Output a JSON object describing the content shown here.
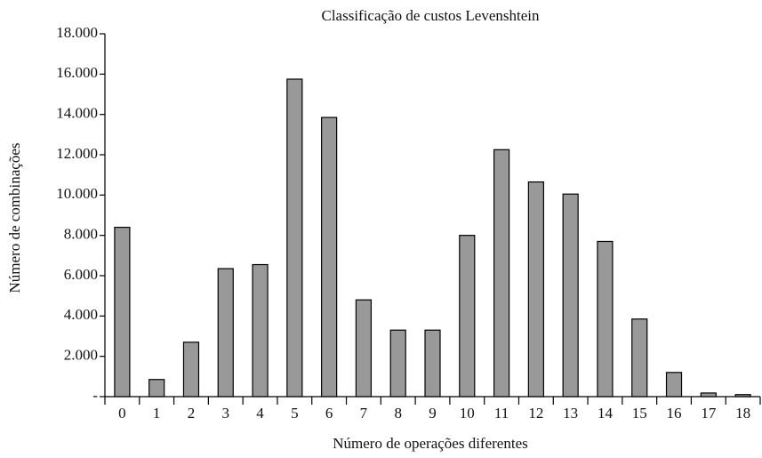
{
  "chart_data": {
    "type": "bar",
    "title": "Classificação de custos Levenshtein",
    "x_label": "Número de operações diferentes",
    "y_label": "Número de combinações",
    "categories": [
      "0",
      "1",
      "2",
      "3",
      "4",
      "5",
      "6",
      "7",
      "8",
      "9",
      "10",
      "11",
      "12",
      "13",
      "14",
      "15",
      "16",
      "17",
      "18"
    ],
    "values": [
      8400,
      850,
      2700,
      6350,
      6550,
      15750,
      13850,
      4800,
      3300,
      3300,
      8000,
      12250,
      10650,
      10050,
      7700,
      3850,
      1200,
      180,
      100
    ],
    "color": "#999999",
    "ylim": [
      0,
      18000
    ],
    "yticks": [
      {
        "value": 0,
        "label": "-"
      },
      {
        "value": 2000,
        "label": "2.000"
      },
      {
        "value": 4000,
        "label": "4.000"
      },
      {
        "value": 6000,
        "label": "6.000"
      },
      {
        "value": 8000,
        "label": "8.000"
      },
      {
        "value": 10000,
        "label": "10.000"
      },
      {
        "value": 12000,
        "label": "12.000"
      },
      {
        "value": 14000,
        "label": "14.000"
      },
      {
        "value": 16000,
        "label": "16.000"
      },
      {
        "value": 18000,
        "label": "18.000"
      }
    ],
    "grid": false
  }
}
